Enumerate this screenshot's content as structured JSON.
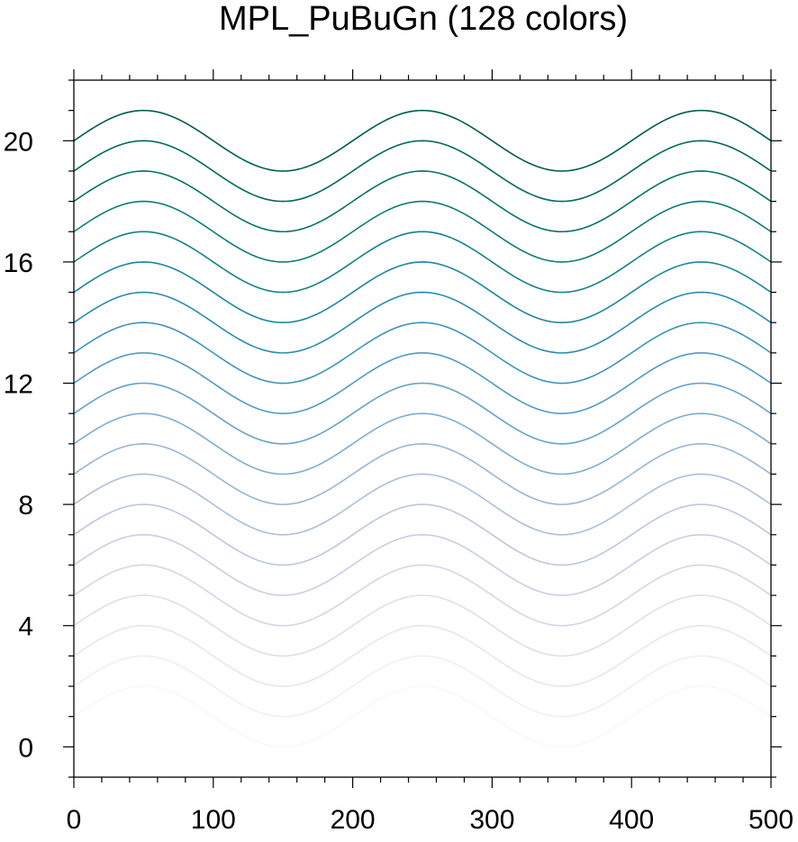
{
  "chart_data": {
    "type": "line",
    "title": "MPL_PuBuGn (128 colors)",
    "xlabel": "",
    "ylabel": "",
    "xlim": [
      0,
      500
    ],
    "ylim": [
      -1,
      22
    ],
    "x_ticks": [
      0,
      100,
      200,
      300,
      400,
      500
    ],
    "y_ticks": [
      0,
      4,
      8,
      12,
      16,
      20
    ],
    "x_tick_labels": [
      "0",
      "100",
      "200",
      "300",
      "400",
      "500"
    ],
    "y_tick_labels": [
      "0",
      "4",
      "8",
      "12",
      "16",
      "20"
    ],
    "x_minor_step": 20,
    "y_minor_step": 1,
    "grid": false,
    "legend": "none",
    "curve_function": "y = offset + sin(2*pi*x/200)",
    "x": [
      0,
      25,
      50,
      75,
      100,
      125,
      150,
      175,
      200,
      225,
      250,
      275,
      300,
      325,
      350,
      375,
      400,
      425,
      450,
      475,
      500
    ],
    "base_wave": [
      0,
      0.707,
      1,
      0.707,
      0,
      -0.707,
      -1,
      -0.707,
      0,
      0.707,
      1,
      0.707,
      0,
      -0.707,
      -1,
      -0.707,
      0,
      0.707,
      1,
      0.707,
      0
    ],
    "series": [
      {
        "offset": 1,
        "color": "#fbf6fa"
      },
      {
        "offset": 2,
        "color": "#f3ecf5"
      },
      {
        "offset": 3,
        "color": "#ebe3f0"
      },
      {
        "offset": 4,
        "color": "#e0dded"
      },
      {
        "offset": 5,
        "color": "#d5d5e8"
      },
      {
        "offset": 6,
        "color": "#c9cee4"
      },
      {
        "offset": 7,
        "color": "#bbc7e0"
      },
      {
        "offset": 8,
        "color": "#a9bfdc"
      },
      {
        "offset": 9,
        "color": "#96b6d7"
      },
      {
        "offset": 10,
        "color": "#7eaed3"
      },
      {
        "offset": 11,
        "color": "#66a3cc"
      },
      {
        "offset": 12,
        "color": "#4e9bc5"
      },
      {
        "offset": 13,
        "color": "#3a93bd"
      },
      {
        "offset": 14,
        "color": "#2a8cb0"
      },
      {
        "offset": 15,
        "color": "#1e879e"
      },
      {
        "offset": 16,
        "color": "#138289"
      },
      {
        "offset": 17,
        "color": "#0b7c76"
      },
      {
        "offset": 18,
        "color": "#027465"
      },
      {
        "offset": 19,
        "color": "#016a5a"
      },
      {
        "offset": 20,
        "color": "#015e4e"
      }
    ]
  }
}
